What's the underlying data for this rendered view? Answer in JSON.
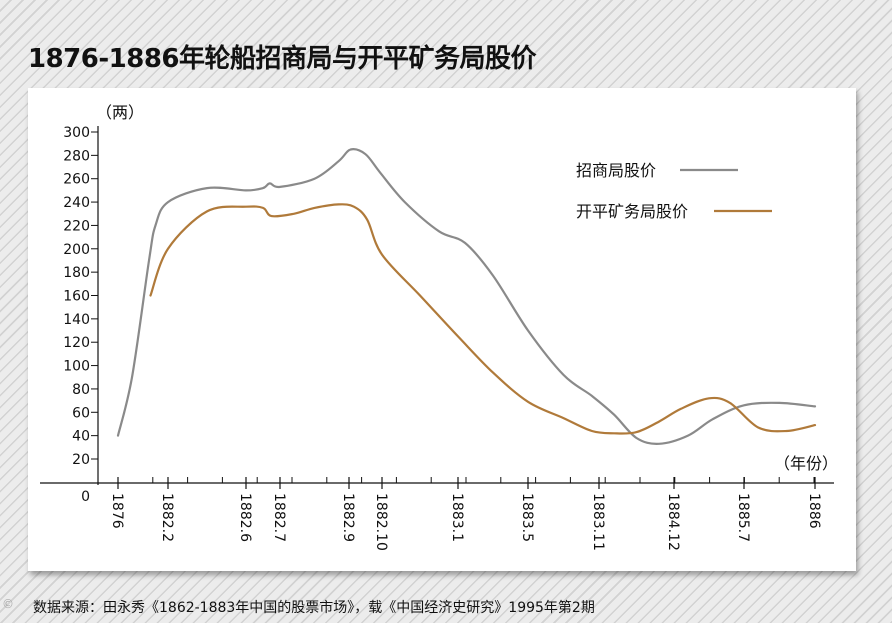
{
  "title": "1876-1886年轮船招商局与开平矿务局股价",
  "source": "数据来源：田永秀《1862-1883年中国的股票市场》，载《中国经济史研究》1995年第2期",
  "watermark": "©",
  "chart_data": {
    "type": "line",
    "ylabel": "（两）",
    "xlabel": "（年份）",
    "yticks": [
      0,
      20,
      40,
      60,
      80,
      100,
      120,
      140,
      160,
      180,
      200,
      220,
      240,
      260,
      280,
      300
    ],
    "ylim": [
      0,
      300
    ],
    "xticks": [
      "1876",
      "1882.2",
      "1882.6",
      "1882.7",
      "1882.9",
      "1882.10",
      "1883.1",
      "1883.5",
      "1883.11",
      "1884.12",
      "1885.7",
      "1886"
    ],
    "grid": false,
    "legend_position": "top-right",
    "colors": {
      "zhaoshang": "#8a8a8a",
      "kaiping": "#b07a3a"
    },
    "series": [
      {
        "key": "zhaoshang",
        "name": "招商局股价",
        "color": "#8a8a8a",
        "points": [
          [
            0,
            40
          ],
          [
            0.28,
            90
          ],
          [
            0.62,
            190
          ],
          [
            0.75,
            220
          ],
          [
            1.0,
            240
          ],
          [
            1.5,
            252
          ],
          [
            2.0,
            250
          ],
          [
            2.5,
            252
          ],
          [
            2.7,
            256
          ],
          [
            3.0,
            253
          ],
          [
            3.5,
            260
          ],
          [
            3.85,
            275
          ],
          [
            4.05,
            285
          ],
          [
            4.5,
            281
          ],
          [
            4.95,
            265
          ],
          [
            5.3,
            240
          ],
          [
            5.75,
            215
          ],
          [
            6.1,
            205
          ],
          [
            6.5,
            177
          ],
          [
            7.0,
            130
          ],
          [
            7.5,
            92
          ],
          [
            7.9,
            74
          ],
          [
            8.2,
            58
          ],
          [
            8.5,
            38
          ],
          [
            8.8,
            33
          ],
          [
            9.2,
            40
          ],
          [
            9.55,
            54
          ],
          [
            10.0,
            66
          ],
          [
            10.5,
            68
          ],
          [
            11.05,
            65
          ]
        ]
      },
      {
        "key": "kaiping",
        "name": "开平矿务局股价",
        "color": "#b07a3a",
        "points": [
          [
            0.65,
            160
          ],
          [
            1.0,
            200
          ],
          [
            1.5,
            232
          ],
          [
            2.0,
            236
          ],
          [
            2.5,
            235
          ],
          [
            2.75,
            228
          ],
          [
            3.2,
            230
          ],
          [
            3.5,
            235
          ],
          [
            3.85,
            238
          ],
          [
            4.15,
            236
          ],
          [
            4.55,
            225
          ],
          [
            5.0,
            195
          ],
          [
            5.5,
            160
          ],
          [
            6.0,
            125
          ],
          [
            6.5,
            94
          ],
          [
            7.0,
            69
          ],
          [
            7.5,
            55
          ],
          [
            7.9,
            44
          ],
          [
            8.2,
            42
          ],
          [
            8.5,
            43
          ],
          [
            8.8,
            52
          ],
          [
            9.1,
            63
          ],
          [
            9.5,
            72
          ],
          [
            9.8,
            68
          ],
          [
            10.2,
            47
          ],
          [
            10.6,
            44
          ],
          [
            11.05,
            49
          ]
        ]
      }
    ]
  }
}
